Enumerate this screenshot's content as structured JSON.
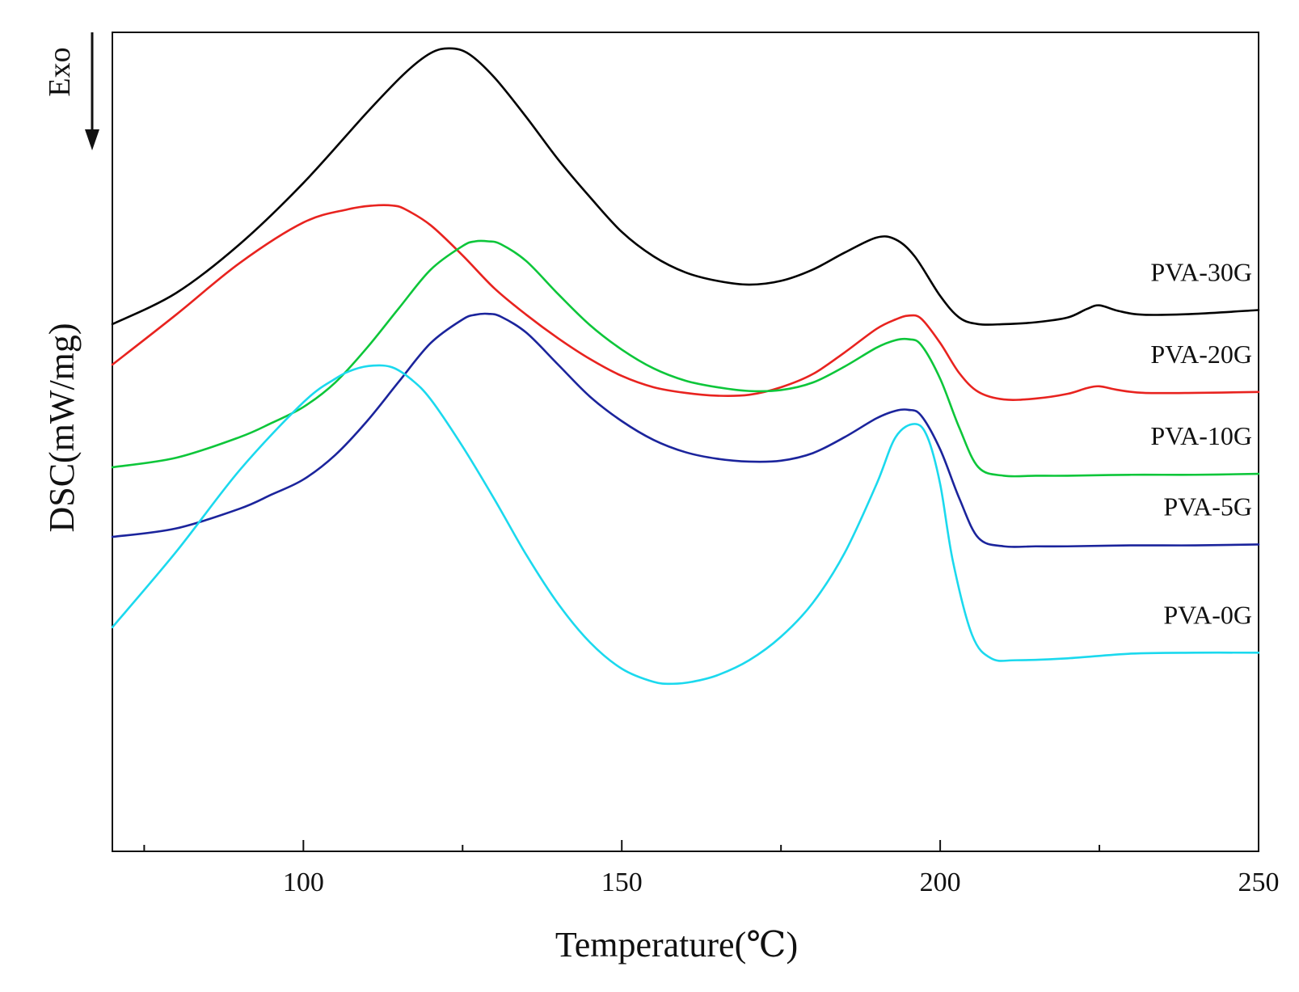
{
  "chart_data": {
    "type": "line",
    "title": "",
    "xlabel": "Temperature(℃)",
    "ylabel": "DSC(mW/mg)",
    "xlim": [
      70,
      250
    ],
    "ylim": [
      -5.6,
      3.1
    ],
    "xticks": [
      100,
      150,
      200,
      250
    ],
    "xtick_labels": [
      "100",
      "150",
      "200",
      "250"
    ],
    "y_tick_labels_shown": false,
    "grid": false,
    "exo_indicator": {
      "label": "Exo",
      "direction": "down"
    },
    "legend": "inline labels at right end of each curve",
    "series": [
      {
        "name": "PVA-30G",
        "label": "PVA-30G",
        "color": "#000000",
        "x": [
          70,
          80,
          90,
          100,
          110,
          116,
          120,
          123,
          126,
          130,
          135,
          140,
          145,
          150,
          155,
          160,
          165,
          170,
          175,
          180,
          185,
          190,
          193,
          196,
          200,
          203,
          206,
          210,
          215,
          220,
          223,
          225,
          228,
          232,
          240,
          250
        ],
        "y": [
          0.0,
          0.33,
          0.85,
          1.5,
          2.25,
          2.67,
          2.88,
          2.93,
          2.87,
          2.62,
          2.2,
          1.75,
          1.35,
          0.98,
          0.72,
          0.55,
          0.46,
          0.42,
          0.46,
          0.58,
          0.76,
          0.92,
          0.9,
          0.72,
          0.3,
          0.07,
          0.0,
          0.0,
          0.02,
          0.07,
          0.16,
          0.2,
          0.14,
          0.1,
          0.11,
          0.15
        ]
      },
      {
        "name": "PVA-20G",
        "label": "PVA-20G",
        "color": "#e8231f",
        "x": [
          70,
          80,
          90,
          100,
          107,
          111,
          114,
          116,
          120,
          125,
          130,
          135,
          140,
          145,
          150,
          155,
          160,
          165,
          170,
          175,
          180,
          185,
          190,
          193,
          195,
          197,
          200,
          203,
          206,
          210,
          215,
          220,
          223,
          225,
          228,
          232,
          240,
          250
        ],
        "y": [
          -0.43,
          0.1,
          0.65,
          1.08,
          1.22,
          1.26,
          1.26,
          1.22,
          1.05,
          0.73,
          0.38,
          0.1,
          -0.15,
          -0.37,
          -0.55,
          -0.67,
          -0.73,
          -0.76,
          -0.75,
          -0.67,
          -0.53,
          -0.3,
          -0.05,
          0.05,
          0.09,
          0.06,
          -0.2,
          -0.52,
          -0.72,
          -0.8,
          -0.79,
          -0.74,
          -0.68,
          -0.66,
          -0.7,
          -0.73,
          -0.73,
          -0.72
        ]
      },
      {
        "name": "PVA-10G",
        "label": "PVA-10G",
        "color": "#0dc63a",
        "x": [
          70,
          80,
          90,
          95,
          100,
          105,
          110,
          115,
          120,
          125,
          127,
          129,
          131,
          135,
          140,
          145,
          150,
          155,
          160,
          165,
          170,
          175,
          180,
          185,
          190,
          193,
          195,
          197,
          200,
          203,
          206,
          210,
          215,
          220,
          230,
          240,
          250
        ],
        "y": [
          -1.52,
          -1.42,
          -1.2,
          -1.05,
          -0.88,
          -0.62,
          -0.25,
          0.17,
          0.58,
          0.83,
          0.88,
          0.88,
          0.85,
          0.67,
          0.32,
          -0.01,
          -0.27,
          -0.47,
          -0.6,
          -0.67,
          -0.71,
          -0.7,
          -0.62,
          -0.45,
          -0.25,
          -0.17,
          -0.16,
          -0.22,
          -0.58,
          -1.1,
          -1.52,
          -1.61,
          -1.61,
          -1.61,
          -1.6,
          -1.6,
          -1.59
        ]
      },
      {
        "name": "PVA-5G",
        "label": "PVA-5G",
        "color": "#1b249c",
        "x": [
          70,
          80,
          90,
          95,
          100,
          105,
          110,
          115,
          120,
          125,
          127,
          129,
          131,
          135,
          140,
          145,
          150,
          155,
          160,
          165,
          170,
          175,
          180,
          185,
          190,
          193,
          195,
          197,
          200,
          203,
          206,
          210,
          215,
          220,
          230,
          240,
          250
        ],
        "y": [
          -2.26,
          -2.17,
          -1.96,
          -1.81,
          -1.65,
          -1.39,
          -1.03,
          -0.61,
          -0.2,
          0.05,
          0.1,
          0.11,
          0.08,
          -0.09,
          -0.43,
          -0.77,
          -1.03,
          -1.23,
          -1.36,
          -1.43,
          -1.46,
          -1.45,
          -1.37,
          -1.2,
          -1.0,
          -0.92,
          -0.91,
          -0.97,
          -1.33,
          -1.85,
          -2.27,
          -2.36,
          -2.36,
          -2.36,
          -2.35,
          -2.35,
          -2.34
        ]
      },
      {
        "name": "PVA-0G",
        "label": "PVA-0G",
        "color": "#1bd9ee",
        "x": [
          70,
          80,
          90,
          100,
          105,
          108,
          111,
          114,
          117,
          120,
          125,
          130,
          135,
          140,
          145,
          150,
          155,
          158,
          161,
          165,
          170,
          175,
          180,
          185,
          190,
          193,
          196,
          198,
          200,
          202,
          205,
          208,
          212,
          220,
          230,
          240,
          250
        ],
        "y": [
          -3.22,
          -2.42,
          -1.55,
          -0.83,
          -0.58,
          -0.48,
          -0.44,
          -0.46,
          -0.59,
          -0.8,
          -1.3,
          -1.86,
          -2.45,
          -2.97,
          -3.38,
          -3.66,
          -3.8,
          -3.82,
          -3.8,
          -3.73,
          -3.57,
          -3.32,
          -2.96,
          -2.43,
          -1.7,
          -1.2,
          -1.06,
          -1.2,
          -1.7,
          -2.52,
          -3.3,
          -3.55,
          -3.57,
          -3.55,
          -3.5,
          -3.49,
          -3.49
        ]
      }
    ]
  }
}
